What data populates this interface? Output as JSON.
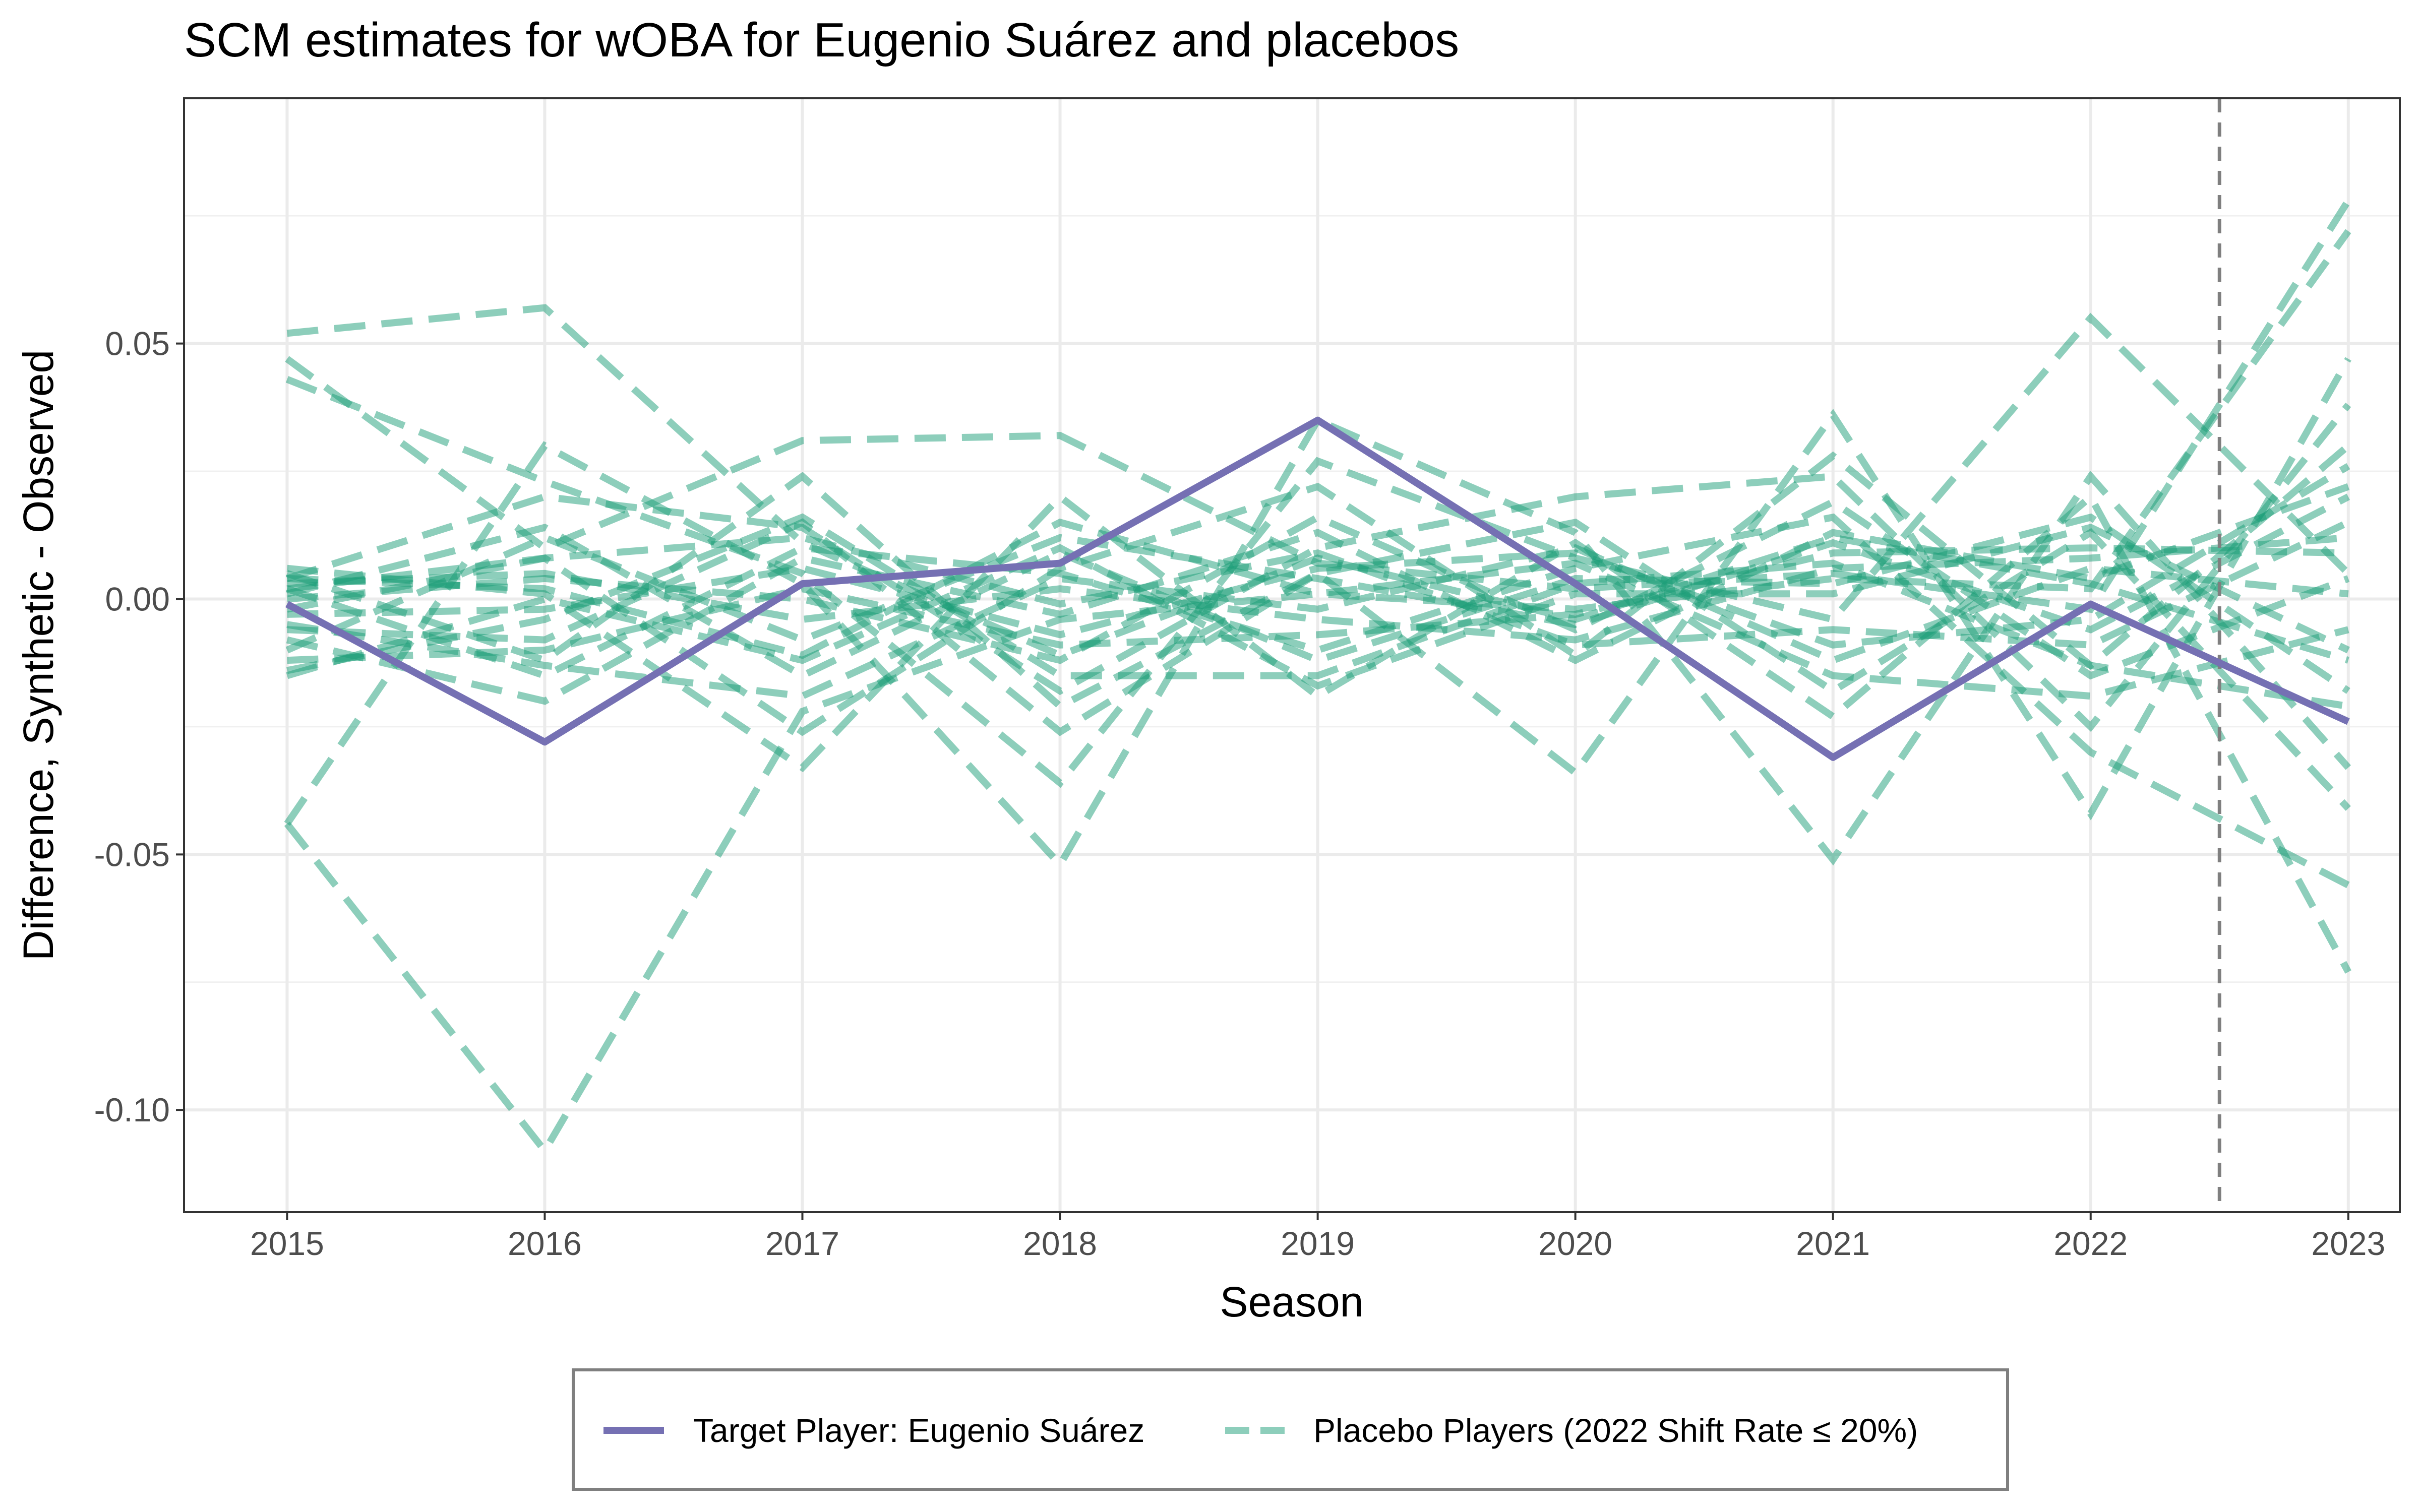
{
  "chart_data": {
    "type": "line",
    "title": "SCM estimates for wOBA for Eugenio Suárez and placebos",
    "xlabel": "Season",
    "ylabel": "Difference, Synthetic - Observed",
    "x": [
      2015,
      2016,
      2017,
      2018,
      2019,
      2020,
      2021,
      2022,
      2023
    ],
    "x_ticks": [
      "2015",
      "2016",
      "2017",
      "2018",
      "2019",
      "2020",
      "2021",
      "2022",
      "2023"
    ],
    "y_ticks": [
      "-0.10",
      "-0.05",
      "0.00",
      "0.05"
    ],
    "y_tick_values": [
      -0.1,
      -0.05,
      0.0,
      0.05
    ],
    "xlim": [
      2014.6,
      2023.2
    ],
    "ylim": [
      -0.12,
      0.098
    ],
    "treatment_line_x": 2022.5,
    "grid": true,
    "legend_position": "bottom",
    "colors": {
      "target": "#7570b3",
      "placebo": "#1b9e77",
      "treatment_line": "#7f7f7f"
    },
    "series": [
      {
        "name": "Target Player: Eugenio Suárez",
        "role": "target",
        "values": [
          -0.001,
          -0.028,
          0.003,
          0.007,
          0.035,
          0.003,
          -0.031,
          -0.001,
          -0.024
        ]
      },
      {
        "name": "Placebo Players (2022 Shift Rate ≤ 20%)",
        "role": "placebo",
        "values": [
          0.052,
          0.057,
          0.011,
          -0.011,
          0.008,
          -0.004,
          0.012,
          0.003,
          -0.012
        ]
      },
      {
        "role": "placebo",
        "values": [
          0.047,
          0.01,
          0.031,
          0.032,
          0.007,
          0.002,
          0.005,
          -0.002,
          0.078
        ]
      },
      {
        "role": "placebo",
        "values": [
          0.043,
          0.023,
          0.005,
          -0.036,
          0.027,
          0.008,
          -0.004,
          0.055,
          0.005
        ]
      },
      {
        "role": "placebo",
        "values": [
          -0.044,
          -0.108,
          -0.022,
          -0.004,
          0.001,
          -0.002,
          0.004,
          0.002,
          0.072
        ]
      },
      {
        "role": "placebo",
        "values": [
          -0.044,
          0.03,
          0.003,
          -0.052,
          0.035,
          0.013,
          -0.051,
          0.024,
          -0.033
        ]
      },
      {
        "role": "placebo",
        "values": [
          0.005,
          -0.012,
          0.024,
          -0.021,
          0.005,
          -0.034,
          0.036,
          -0.042,
          0.047
        ]
      },
      {
        "role": "placebo",
        "values": [
          0.006,
          0.001,
          -0.033,
          0.02,
          -0.019,
          0.011,
          -0.023,
          0.02,
          -0.073
        ]
      },
      {
        "role": "placebo",
        "values": [
          0.004,
          0.02,
          0.014,
          -0.018,
          0.01,
          0.02,
          0.024,
          -0.025,
          0.038
        ]
      },
      {
        "role": "placebo",
        "values": [
          0.002,
          -0.015,
          0.01,
          0.005,
          -0.01,
          0.006,
          0.016,
          -0.03,
          -0.056
        ]
      },
      {
        "role": "placebo",
        "values": [
          -0.002,
          0.008,
          -0.026,
          0.006,
          0.022,
          -0.011,
          0.028,
          -0.013,
          0.03
        ]
      },
      {
        "role": "placebo",
        "values": [
          -0.006,
          -0.008,
          0.015,
          -0.026,
          0.005,
          0.015,
          -0.018,
          0.013,
          -0.041
        ]
      },
      {
        "role": "placebo",
        "values": [
          -0.01,
          0.012,
          -0.008,
          0.012,
          0.004,
          -0.005,
          0.011,
          -0.006,
          0.02
        ]
      },
      {
        "role": "placebo",
        "values": [
          -0.014,
          -0.004,
          0.016,
          -0.015,
          -0.015,
          0.003,
          0.007,
          -0.013,
          -0.021
        ]
      },
      {
        "role": "placebo",
        "values": [
          0.003,
          0.005,
          -0.004,
          0.002,
          -0.004,
          -0.008,
          0.006,
          0.008,
          0.012
        ]
      },
      {
        "role": "placebo",
        "values": [
          -0.003,
          -0.002,
          0.006,
          -0.007,
          0.006,
          0.009,
          -0.009,
          -0.004,
          0.026
        ]
      },
      {
        "role": "placebo",
        "values": [
          0.001,
          0.014,
          -0.015,
          0.009,
          -0.012,
          0.004,
          0.003,
          0.016,
          -0.018
        ]
      },
      {
        "role": "placebo",
        "values": [
          -0.008,
          -0.02,
          0.008,
          -0.003,
          0.013,
          -0.012,
          0.013,
          0.004,
          0.022
        ]
      },
      {
        "role": "placebo",
        "values": [
          0.004,
          0.002,
          -0.011,
          0.015,
          0.001,
          0.007,
          -0.015,
          -0.019,
          -0.006
        ]
      },
      {
        "role": "placebo",
        "values": [
          -0.012,
          -0.01,
          0.002,
          -0.009,
          -0.007,
          -0.003,
          0.009,
          0.01,
          0.009
        ]
      },
      {
        "role": "placebo",
        "values": [
          0.002,
          0.008,
          0.012,
          -0.001,
          0.009,
          -0.009,
          -0.006,
          -0.009,
          0.015
        ]
      },
      {
        "role": "placebo",
        "values": [
          -0.005,
          -0.013,
          -0.019,
          0.004,
          -0.002,
          0.01,
          -0.012,
          0.006,
          0.001
        ]
      },
      {
        "role": "placebo",
        "values": [
          0.0,
          0.004,
          0.0,
          -0.012,
          0.016,
          -0.006,
          0.019,
          -0.015,
          0.004
        ]
      },
      {
        "role": "placebo",
        "values": [
          -0.015,
          0.0,
          -0.012,
          0.01,
          -0.017,
          0.001,
          0.001,
          0.014,
          -0.01
        ]
      }
    ]
  },
  "legend": {
    "target_label": "Target Player: Eugenio Suárez",
    "placebo_label": "Placebo Players (2022 Shift Rate ≤ 20%)"
  }
}
